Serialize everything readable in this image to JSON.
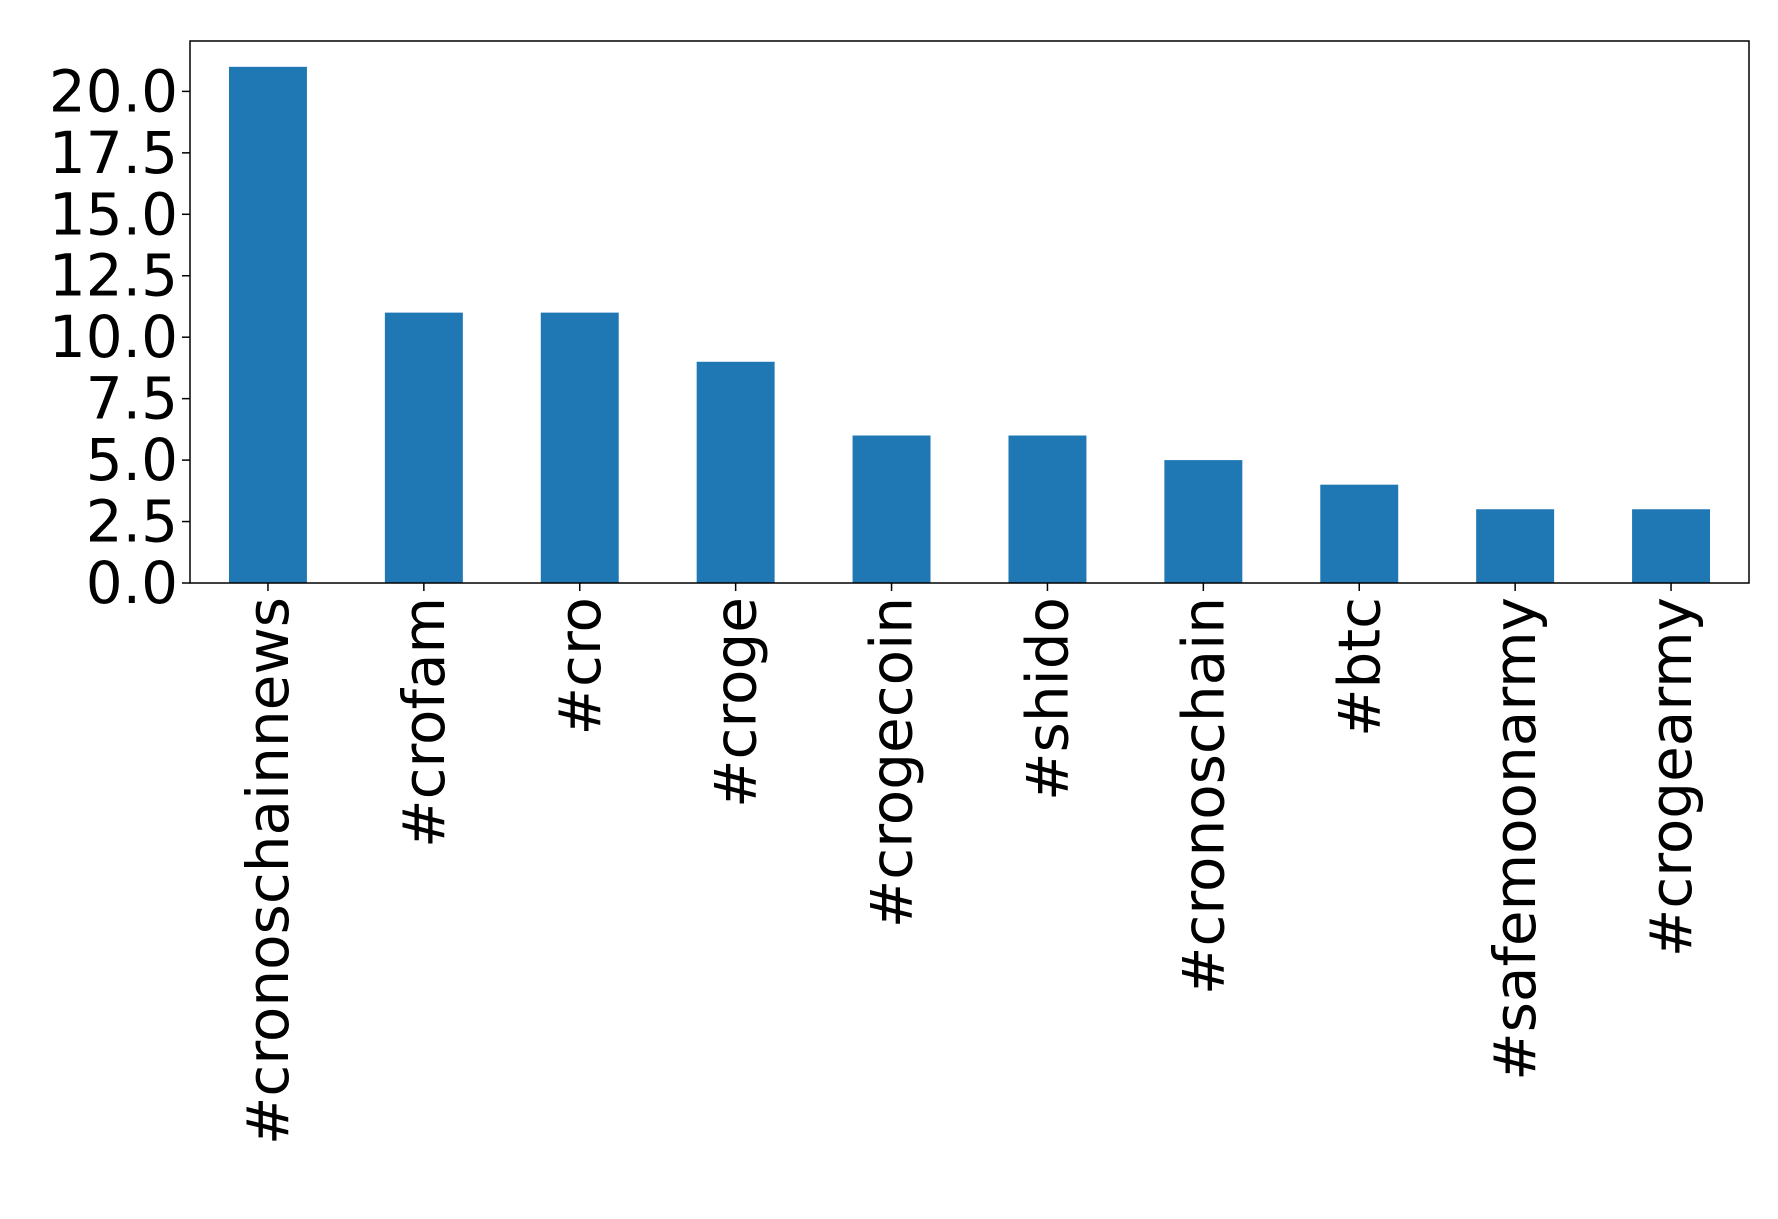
{
  "chart_data": {
    "type": "bar",
    "categories": [
      "#cronoschainnews",
      "#crofam",
      "#cro",
      "#croge",
      "#crogecoin",
      "#shido",
      "#cronoschain",
      "#btc",
      "#safemoonarmy",
      "#crogearmy"
    ],
    "values": [
      21,
      11,
      11,
      9,
      6,
      6,
      5,
      4,
      3,
      3
    ],
    "color": "#1f77b4",
    "ylim": [
      0,
      22.05
    ],
    "yticks": [
      {
        "value": 0,
        "label": "0.0"
      },
      {
        "value": 2.5,
        "label": "2.5"
      },
      {
        "value": 5,
        "label": "5.0"
      },
      {
        "value": 7.5,
        "label": "7.5"
      },
      {
        "value": 10,
        "label": "10.0"
      },
      {
        "value": 12.5,
        "label": "12.5"
      },
      {
        "value": 15,
        "label": "15.0"
      },
      {
        "value": 17.5,
        "label": "17.5"
      },
      {
        "value": 20,
        "label": "20.0"
      }
    ],
    "grid": false
  }
}
